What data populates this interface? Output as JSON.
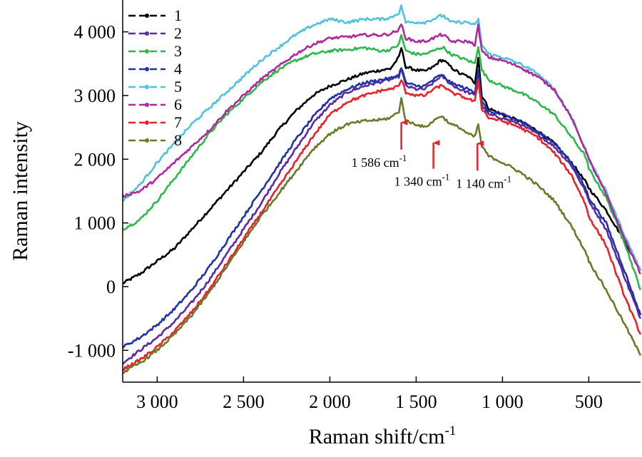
{
  "chart_data": {
    "type": "line",
    "xlabel": "Raman shift/cm",
    "xlabel_sup": "-1",
    "ylabel": "Raman intensity",
    "xlim": [
      3200,
      200
    ],
    "ylim": [
      -1500,
      4500
    ],
    "x_reversed": true,
    "x_ticks": [
      {
        "value": 3000,
        "label": "3 000"
      },
      {
        "value": 2500,
        "label": "2 500"
      },
      {
        "value": 2000,
        "label": "2 000"
      },
      {
        "value": 1500,
        "label": "1 500"
      },
      {
        "value": 1000,
        "label": "1 000"
      },
      {
        "value": 500,
        "label": "500"
      }
    ],
    "y_ticks": [
      {
        "value": -1000,
        "label": "-1 000"
      },
      {
        "value": 0,
        "label": "0"
      },
      {
        "value": 1000,
        "label": "1 000"
      },
      {
        "value": 2000,
        "label": "2 000"
      },
      {
        "value": 3000,
        "label": "3 000"
      },
      {
        "value": 4000,
        "label": "4 000"
      }
    ],
    "grid": false,
    "legend_position": "top-left",
    "series": [
      {
        "name": "1",
        "color": "#000000",
        "x": [
          3200,
          3100,
          3000,
          2900,
          2800,
          2700,
          2600,
          2500,
          2400,
          2300,
          2200,
          2100,
          2000,
          1900,
          1800,
          1700,
          1650,
          1600,
          1586,
          1560,
          1500,
          1450,
          1400,
          1360,
          1340,
          1300,
          1250,
          1200,
          1160,
          1140,
          1120,
          1080,
          1000,
          900,
          800,
          700,
          600,
          520,
          510,
          500,
          400,
          300,
          200
        ],
        "y": [
          50,
          200,
          400,
          600,
          900,
          1200,
          1500,
          1800,
          2100,
          2450,
          2750,
          3000,
          3150,
          3250,
          3350,
          3400,
          3420,
          3600,
          3750,
          3450,
          3400,
          3380,
          3450,
          3550,
          3550,
          3450,
          3350,
          3300,
          3200,
          3600,
          3000,
          2800,
          2700,
          2600,
          2450,
          2250,
          1950,
          1650,
          1600,
          1550,
          1200,
          750,
          250
        ]
      },
      {
        "name": "2",
        "color": "#5a2ca0",
        "x": [
          3200,
          3100,
          3000,
          2900,
          2800,
          2700,
          2600,
          2500,
          2400,
          2300,
          2200,
          2100,
          2000,
          1900,
          1800,
          1700,
          1650,
          1600,
          1586,
          1560,
          1500,
          1450,
          1400,
          1360,
          1340,
          1300,
          1250,
          1200,
          1160,
          1140,
          1120,
          1080,
          1000,
          900,
          800,
          700,
          600,
          520,
          510,
          500,
          400,
          300,
          200
        ],
        "y": [
          -1200,
          -1000,
          -800,
          -550,
          -250,
          100,
          500,
          900,
          1300,
          1750,
          2150,
          2550,
          2850,
          3050,
          3150,
          3220,
          3250,
          3300,
          3420,
          3150,
          3100,
          3100,
          3200,
          3300,
          3280,
          3180,
          3100,
          3050,
          3000,
          3380,
          2850,
          2700,
          2650,
          2550,
          2400,
          2200,
          1900,
          1500,
          1420,
          1350,
          900,
          200,
          -500
        ]
      },
      {
        "name": "3",
        "color": "#2db84a",
        "x": [
          3200,
          3100,
          3000,
          2900,
          2800,
          2700,
          2600,
          2500,
          2400,
          2300,
          2200,
          2100,
          2000,
          1900,
          1800,
          1700,
          1650,
          1600,
          1586,
          1560,
          1500,
          1450,
          1400,
          1360,
          1340,
          1300,
          1250,
          1200,
          1160,
          1140,
          1120,
          1080,
          1000,
          900,
          800,
          700,
          600,
          520,
          510,
          500,
          400,
          300,
          200
        ],
        "y": [
          900,
          1050,
          1350,
          1700,
          2050,
          2400,
          2700,
          2950,
          3200,
          3400,
          3550,
          3650,
          3700,
          3720,
          3750,
          3700,
          3720,
          3800,
          3950,
          3700,
          3650,
          3650,
          3700,
          3750,
          3750,
          3650,
          3600,
          3550,
          3500,
          3780,
          3400,
          3250,
          3150,
          3050,
          2900,
          2700,
          2350,
          2050,
          1950,
          1850,
          1400,
          750,
          -50
        ]
      },
      {
        "name": "4",
        "color": "#2233a8",
        "x": [
          3200,
          3100,
          3000,
          2900,
          2800,
          2700,
          2600,
          2500,
          2400,
          2300,
          2200,
          2100,
          2000,
          1900,
          1800,
          1700,
          1650,
          1600,
          1586,
          1560,
          1500,
          1450,
          1400,
          1360,
          1340,
          1300,
          1250,
          1200,
          1160,
          1140,
          1120,
          1080,
          1000,
          900,
          800,
          700,
          600,
          520,
          510,
          500,
          400,
          300,
          200
        ],
        "y": [
          -950,
          -800,
          -600,
          -350,
          -50,
          300,
          700,
          1100,
          1500,
          1900,
          2300,
          2650,
          2950,
          3100,
          3200,
          3250,
          3270,
          3320,
          3450,
          3200,
          3150,
          3150,
          3250,
          3320,
          3300,
          3200,
          3150,
          3100,
          3050,
          3400,
          2900,
          2750,
          2700,
          2600,
          2450,
          2250,
          1950,
          1550,
          1480,
          1400,
          1000,
          300,
          -450
        ]
      },
      {
        "name": "5",
        "color": "#4fc3dc",
        "x": [
          3200,
          3100,
          3000,
          2900,
          2800,
          2700,
          2600,
          2500,
          2400,
          2300,
          2200,
          2100,
          2000,
          1900,
          1800,
          1700,
          1650,
          1600,
          1586,
          1560,
          1500,
          1450,
          1400,
          1360,
          1340,
          1300,
          1250,
          1200,
          1160,
          1140,
          1120,
          1080,
          1000,
          900,
          800,
          700,
          600,
          520,
          510,
          500,
          400,
          300,
          200
        ],
        "y": [
          1350,
          1600,
          1950,
          2250,
          2550,
          2800,
          3050,
          3300,
          3550,
          3750,
          3950,
          4100,
          4200,
          4150,
          4200,
          4200,
          4220,
          4300,
          4400,
          4150,
          4150,
          4150,
          4200,
          4250,
          4250,
          4150,
          4150,
          4150,
          4100,
          4200,
          3800,
          3650,
          3600,
          3500,
          3350,
          3100,
          2650,
          2150,
          2100,
          2000,
          1500,
          850,
          250
        ]
      },
      {
        "name": "6",
        "color": "#b0289e",
        "x": [
          3200,
          3100,
          3000,
          2900,
          2800,
          2700,
          2600,
          2500,
          2400,
          2300,
          2200,
          2100,
          2000,
          1900,
          1800,
          1700,
          1650,
          1600,
          1586,
          1560,
          1500,
          1450,
          1400,
          1360,
          1340,
          1300,
          1250,
          1200,
          1160,
          1140,
          1120,
          1080,
          1000,
          900,
          800,
          700,
          600,
          520,
          510,
          500,
          400,
          300,
          200
        ],
        "y": [
          1420,
          1500,
          1700,
          1950,
          2200,
          2450,
          2750,
          3000,
          3250,
          3450,
          3650,
          3800,
          3900,
          3920,
          3950,
          3950,
          3970,
          4030,
          4120,
          3900,
          3850,
          3850,
          3900,
          3950,
          3950,
          3850,
          3850,
          3850,
          3800,
          4100,
          3700,
          3600,
          3550,
          3450,
          3300,
          3100,
          2650,
          2150,
          2100,
          2000,
          1450,
          800,
          200
        ]
      },
      {
        "name": "7",
        "color": "#e8212b",
        "x": [
          3200,
          3100,
          3000,
          2900,
          2800,
          2700,
          2600,
          2500,
          2400,
          2300,
          2200,
          2100,
          2000,
          1900,
          1800,
          1700,
          1650,
          1600,
          1586,
          1560,
          1500,
          1450,
          1400,
          1360,
          1340,
          1300,
          1250,
          1200,
          1160,
          1140,
          1120,
          1080,
          1000,
          900,
          800,
          700,
          600,
          520,
          510,
          500,
          400,
          300,
          200
        ],
        "y": [
          -1300,
          -1150,
          -950,
          -700,
          -400,
          -50,
          350,
          750,
          1150,
          1550,
          1950,
          2350,
          2700,
          2900,
          3000,
          3080,
          3100,
          3150,
          3250,
          3050,
          3000,
          3000,
          3100,
          3150,
          3150,
          3050,
          3000,
          2950,
          2900,
          3250,
          2800,
          2650,
          2600,
          2500,
          2350,
          2100,
          1750,
          1300,
          1200,
          1100,
          650,
          -100,
          -750
        ]
      },
      {
        "name": "8",
        "color": "#6b7a2a",
        "x": [
          3200,
          3100,
          3000,
          2900,
          2800,
          2700,
          2600,
          2500,
          2400,
          2300,
          2200,
          2100,
          2000,
          1900,
          1800,
          1700,
          1650,
          1600,
          1586,
          1560,
          1500,
          1450,
          1400,
          1360,
          1340,
          1300,
          1250,
          1200,
          1160,
          1140,
          1120,
          1080,
          1000,
          900,
          800,
          700,
          600,
          520,
          510,
          500,
          400,
          300,
          200
        ],
        "y": [
          -1350,
          -1200,
          -1000,
          -750,
          -450,
          -100,
          300,
          700,
          1100,
          1450,
          1800,
          2150,
          2400,
          2550,
          2600,
          2620,
          2650,
          2750,
          2950,
          2600,
          2550,
          2500,
          2600,
          2680,
          2650,
          2550,
          2500,
          2400,
          2350,
          2550,
          2200,
          2050,
          1950,
          1800,
          1600,
          1350,
          950,
          550,
          500,
          400,
          -50,
          -550,
          -1080
        ]
      }
    ],
    "annotations": [
      {
        "label": "1 586 cm",
        "sup": "-1",
        "arrow_x": 1586,
        "arrow_tip_y": 2600,
        "arrow_tail_y": 2150
      },
      {
        "label": "1 340 cm",
        "sup": "-1",
        "arrow_x": 1400,
        "arrow_tip_y": 2280,
        "arrow_tail_y": 1850
      },
      {
        "label": "1 140 cm",
        "sup": "-1",
        "arrow_x": 1145,
        "arrow_tip_y": 2270,
        "arrow_tail_y": 1820
      }
    ]
  }
}
